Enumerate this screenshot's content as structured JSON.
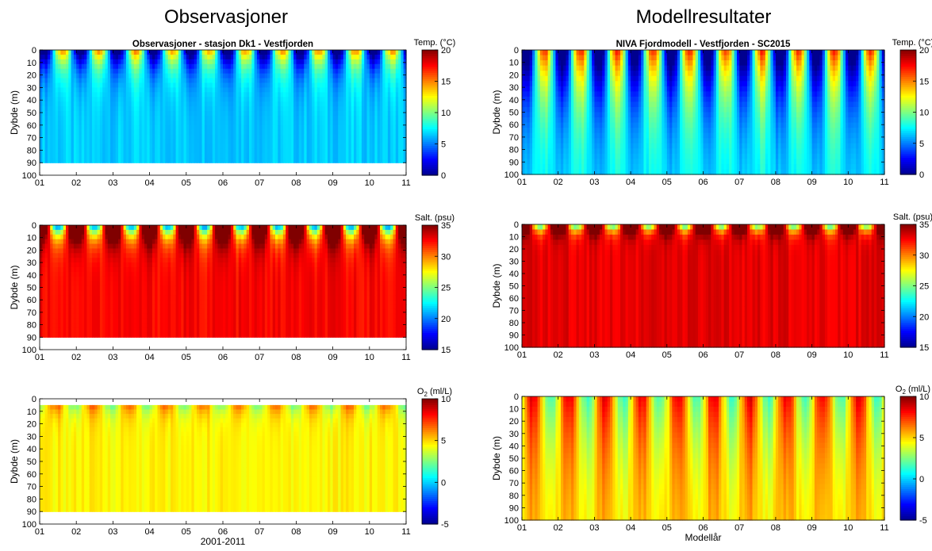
{
  "titles": {
    "left": "Observasjoner",
    "right": "Modellresultater"
  },
  "colors": {
    "colormap": [
      "#00008f",
      "#0000ff",
      "#0080ff",
      "#00ffff",
      "#80ff80",
      "#ffff00",
      "#ff8000",
      "#ff0000",
      "#800000"
    ]
  },
  "chart_data": [
    {
      "id": "obs-temp",
      "type": "heatmap",
      "title": "Observasjoner - stasjon Dk1 - Vestfjorden",
      "ylabel": "Dybde (m)",
      "xlabel": "",
      "categories": [
        "01",
        "02",
        "03",
        "04",
        "05",
        "06",
        "07",
        "08",
        "09",
        "10",
        "11"
      ],
      "y_ticks": [
        "0",
        "10",
        "20",
        "30",
        "40",
        "50",
        "60",
        "70",
        "80",
        "90",
        "100"
      ],
      "ylim": [
        0,
        100
      ],
      "data_max_depth": 90,
      "colorbar": {
        "label": "Temp. (°C)",
        "min": 0,
        "max": 20,
        "ticks": [
          "20",
          "15",
          "10",
          "5",
          "0"
        ]
      },
      "seasonal": {
        "base": 6.5,
        "amp": 9,
        "decay": 14,
        "warm_phase": 0.62
      }
    },
    {
      "id": "obs-salt",
      "type": "heatmap",
      "title": "",
      "ylabel": "Dybde (m)",
      "xlabel": "",
      "categories": [
        "01",
        "02",
        "03",
        "04",
        "05",
        "06",
        "07",
        "08",
        "09",
        "10",
        "11"
      ],
      "y_ticks": [
        "0",
        "10",
        "20",
        "30",
        "40",
        "50",
        "60",
        "70",
        "80",
        "90",
        "100"
      ],
      "ylim": [
        0,
        100
      ],
      "data_max_depth": 90,
      "colorbar": {
        "label": "Salt. (psu)",
        "min": 15,
        "max": 35,
        "ticks": [
          "35",
          "30",
          "25",
          "20",
          "15"
        ]
      },
      "seasonal": {
        "base": 32.5,
        "amp": -14,
        "decay": 9,
        "warm_phase": 0.5
      }
    },
    {
      "id": "obs-o2",
      "type": "heatmap",
      "title": "",
      "ylabel": "Dybde (m)",
      "xlabel": "2001-2011",
      "categories": [
        "01",
        "02",
        "03",
        "04",
        "05",
        "06",
        "07",
        "08",
        "09",
        "10",
        "11"
      ],
      "y_ticks": [
        "0",
        "10",
        "20",
        "30",
        "40",
        "50",
        "60",
        "70",
        "80",
        "90",
        "100"
      ],
      "ylim": [
        0,
        100
      ],
      "data_max_depth": 90,
      "data_min_depth": 5,
      "colorbar": {
        "label_main": "O",
        "label_sub": "2",
        "label_unit": " (ml/L)",
        "min": -5,
        "max": 10,
        "ticks": [
          "10",
          "5",
          "0",
          "-5"
        ]
      },
      "seasonal": {
        "base": 4.5,
        "amp": 4.5,
        "decay": 8,
        "warm_phase": 0.45
      }
    },
    {
      "id": "mod-temp",
      "type": "heatmap",
      "title": "NIVA Fjordmodell - Vestfjorden - SC2015",
      "ylabel": "Dybde (m)",
      "xlabel": "",
      "categories": [
        "01",
        "02",
        "03",
        "04",
        "05",
        "06",
        "07",
        "08",
        "09",
        "10",
        "11"
      ],
      "y_ticks": [
        "0",
        "10",
        "20",
        "30",
        "40",
        "50",
        "60",
        "70",
        "80",
        "90",
        "100"
      ],
      "ylim": [
        0,
        100
      ],
      "data_max_depth": 100,
      "colorbar": {
        "label": "Temp. (°C)",
        "min": 0,
        "max": 20,
        "ticks": [
          "20",
          "15",
          "10",
          "5",
          "0"
        ]
      },
      "seasonal": {
        "base": 7,
        "amp": 10,
        "decay": 40,
        "warm_phase": 0.62
      }
    },
    {
      "id": "mod-salt",
      "type": "heatmap",
      "title": "",
      "ylabel": "Dybde (m)",
      "xlabel": "",
      "categories": [
        "01",
        "02",
        "03",
        "04",
        "05",
        "06",
        "07",
        "08",
        "09",
        "10",
        "11"
      ],
      "y_ticks": [
        "0",
        "10",
        "20",
        "30",
        "40",
        "50",
        "60",
        "70",
        "80",
        "90",
        "100"
      ],
      "ylim": [
        0,
        100
      ],
      "data_max_depth": 100,
      "colorbar": {
        "label": "Salt. (psu)",
        "min": 15,
        "max": 35,
        "ticks": [
          "35",
          "30",
          "25",
          "20",
          "15"
        ]
      },
      "seasonal": {
        "base": 33,
        "amp": -12,
        "decay": 5,
        "warm_phase": 0.5
      }
    },
    {
      "id": "mod-o2",
      "type": "heatmap",
      "title": "",
      "ylabel": "Dybde (m)",
      "xlabel": "Modellår",
      "categories": [
        "01",
        "02",
        "03",
        "04",
        "05",
        "06",
        "07",
        "08",
        "09",
        "10",
        "11"
      ],
      "y_ticks": [
        "0",
        "10",
        "20",
        "30",
        "40",
        "50",
        "60",
        "70",
        "80",
        "90",
        "100"
      ],
      "ylim": [
        0,
        100
      ],
      "data_max_depth": 100,
      "colorbar": {
        "label_main": "O",
        "label_sub": "2",
        "label_unit": " (ml/L)",
        "min": -5,
        "max": 10,
        "ticks": [
          "10",
          "5",
          "0",
          "-5"
        ]
      },
      "seasonal": {
        "base": 5,
        "amp": 3.5,
        "decay": 60,
        "warm_phase": 0.3
      }
    }
  ]
}
